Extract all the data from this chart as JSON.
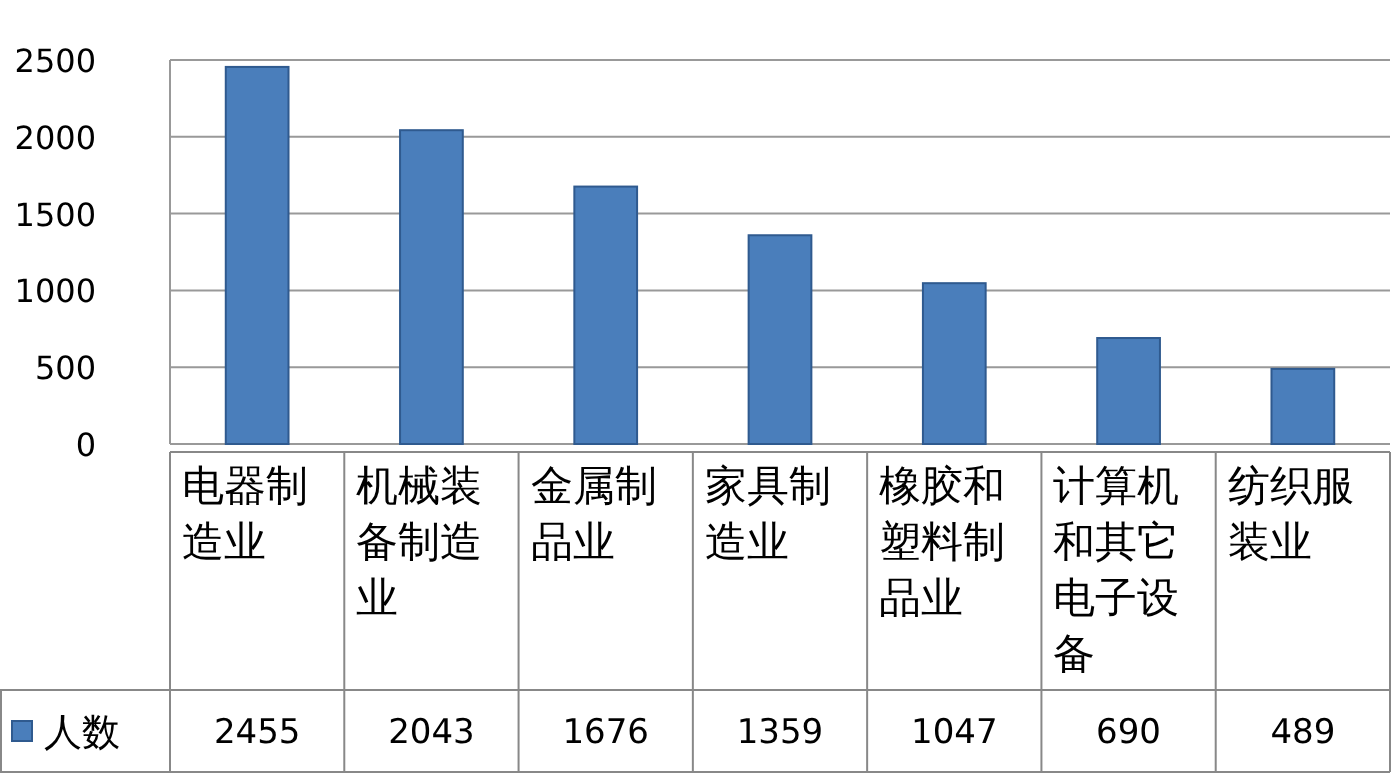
{
  "chart_data": {
    "type": "bar",
    "categories": [
      "电器制造业",
      "机械装备制造业",
      "金属制品业",
      "家具制造业",
      "橡胶和塑料制品业",
      "计算机和其它电子设备",
      "纺织服装业"
    ],
    "series": [
      {
        "name": "人数",
        "color": "#4a7ebb",
        "values": [
          2455,
          2043,
          1676,
          1359,
          1047,
          690,
          489
        ]
      }
    ],
    "ylim": [
      0,
      2500
    ],
    "yticks": [
      0,
      500,
      1000,
      1500,
      2000,
      2500
    ],
    "grid": "y",
    "legend": "bottom",
    "data_labels": true
  }
}
